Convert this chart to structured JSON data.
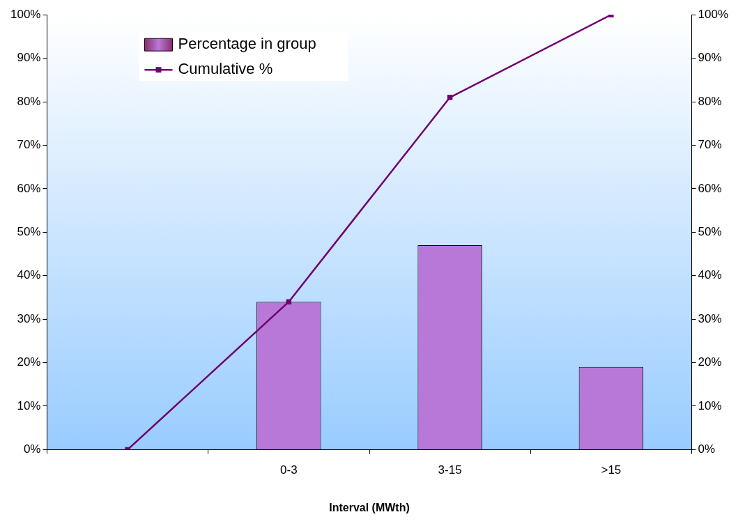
{
  "chart_data": {
    "type": "bar",
    "xlabel": "Interval (MWth)",
    "categories": [
      null,
      "0-3",
      "3-15",
      ">15"
    ],
    "series": [
      {
        "name": "Percentage in group",
        "color": "#b878d8",
        "values": [
          null,
          34,
          47,
          19
        ]
      },
      {
        "name": "Cumulative %",
        "type": "line",
        "color": "#700070",
        "values": [
          0,
          34,
          81,
          100
        ]
      }
    ],
    "ylim": [
      0,
      100
    ],
    "yticks": [
      {
        "value": 0,
        "label": "0%"
      },
      {
        "value": 10,
        "label": "10%"
      },
      {
        "value": 20,
        "label": "20%"
      },
      {
        "value": 30,
        "label": "30%"
      },
      {
        "value": 40,
        "label": "40%"
      },
      {
        "value": 50,
        "label": "50%"
      },
      {
        "value": 60,
        "label": "60%"
      },
      {
        "value": 70,
        "label": "70%"
      },
      {
        "value": 80,
        "label": "80%"
      },
      {
        "value": 90,
        "label": "90%"
      },
      {
        "value": 100,
        "label": "100%"
      }
    ],
    "y2lim": [
      0,
      100
    ],
    "y2ticks": [
      {
        "value": 0,
        "label": "0%"
      },
      {
        "value": 10,
        "label": "10%"
      },
      {
        "value": 20,
        "label": "20%"
      },
      {
        "value": 30,
        "label": "30%"
      },
      {
        "value": 40,
        "label": "40%"
      },
      {
        "value": 50,
        "label": "50%"
      },
      {
        "value": 60,
        "label": "60%"
      },
      {
        "value": 70,
        "label": "70%"
      },
      {
        "value": 80,
        "label": "80%"
      },
      {
        "value": 90,
        "label": "90%"
      },
      {
        "value": 100,
        "label": "100%"
      }
    ],
    "grid": false,
    "legend": "top left",
    "marker": "square",
    "line_style": "solid"
  }
}
